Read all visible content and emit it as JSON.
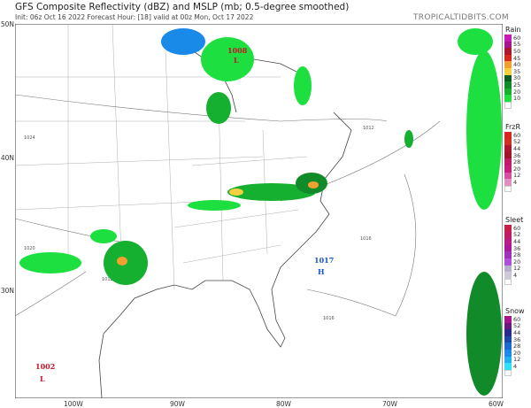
{
  "header": {
    "title": "GFS Composite Reflectivity (dBZ) and MSLP (mb; 0.5-degree smoothed)",
    "subtitle": "Init: 06z Oct 16 2022   Forecast Hour: [18]   valid at 00z Mon, Oct 17 2022",
    "brand": "TROPICALTIDBITS.COM"
  },
  "axes": {
    "lat": [
      "50N",
      "40N",
      "30N"
    ],
    "lon": [
      "100W",
      "90W",
      "80W",
      "70W",
      "60W"
    ]
  },
  "pressure_centers": [
    {
      "value": "1008",
      "type": "L",
      "color": "#c0182a"
    },
    {
      "value": "1017",
      "type": "H",
      "color": "#1a55c8"
    },
    {
      "value": "1002",
      "type": "L",
      "color": "#c0182a"
    }
  ],
  "isobar_labels": [
    "1012",
    "1016",
    "1016",
    "1020",
    "1024",
    "1012"
  ],
  "legend": {
    "rain": {
      "title": "Rain",
      "labels": [
        "60",
        "55",
        "50",
        "45",
        "40",
        "35",
        "30",
        "25",
        "20",
        "10"
      ],
      "colors": [
        "#c71bb5",
        "#a8168c",
        "#b01530",
        "#d8261e",
        "#f0a030",
        "#f6d040",
        "#0c5c1e",
        "#118a2a",
        "#15b030",
        "#1de040"
      ]
    },
    "frzr": {
      "title": "FrzR",
      "labels": [
        "60",
        "52",
        "44",
        "36",
        "28",
        "20",
        "12",
        "4"
      ],
      "colors": [
        "#d8261e",
        "#d03020",
        "#b01530",
        "#a0142a",
        "#c21a6a",
        "#c81e7c",
        "#d450a0",
        "#e090c0"
      ]
    },
    "sleet": {
      "title": "Sleet",
      "labels": [
        "60",
        "52",
        "44",
        "36",
        "28",
        "20",
        "12",
        "4"
      ],
      "colors": [
        "#c81e4a",
        "#c01a60",
        "#b81a88",
        "#a81a9a",
        "#a030b8",
        "#b050d8",
        "#b8b0c8",
        "#d0c8d8"
      ]
    },
    "snow": {
      "title": "Snow",
      "labels": [
        "60",
        "52",
        "44",
        "36",
        "28",
        "20",
        "12",
        "4"
      ],
      "colors": [
        "#a8168c",
        "#6a1a7a",
        "#2a2a8a",
        "#1a4aa8",
        "#1a6ad0",
        "#1a8ae8",
        "#20b0f0",
        "#30e0f8"
      ]
    }
  }
}
